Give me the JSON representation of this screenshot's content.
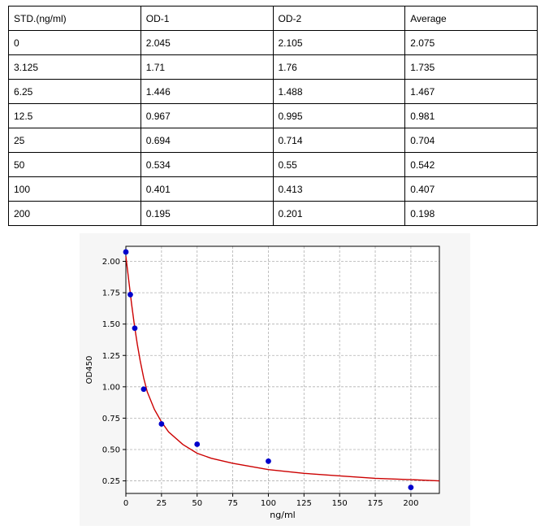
{
  "table": {
    "headers": [
      "STD.(ng/ml)",
      "OD-1",
      "OD-2",
      "Average"
    ],
    "rows": [
      [
        "0",
        "2.045",
        "2.105",
        "2.075"
      ],
      [
        "3.125",
        "1.71",
        "1.76",
        "1.735"
      ],
      [
        "6.25",
        "1.446",
        "1.488",
        "1.467"
      ],
      [
        "12.5",
        "0.967",
        "0.995",
        "0.981"
      ],
      [
        "25",
        "0.694",
        "0.714",
        "0.704"
      ],
      [
        "50",
        "0.534",
        "0.55",
        "0.542"
      ],
      [
        "100",
        "0.401",
        "0.413",
        "0.407"
      ],
      [
        "200",
        "0.195",
        "0.201",
        "0.198"
      ]
    ]
  },
  "chart_data": {
    "type": "scatter",
    "title": "",
    "xlabel": "ng/ml",
    "ylabel": "OD450",
    "xlim": [
      0,
      220
    ],
    "ylim": [
      0.15,
      2.12
    ],
    "xticks": [
      0,
      25,
      50,
      75,
      100,
      125,
      150,
      175,
      200
    ],
    "yticks": [
      0.25,
      0.5,
      0.75,
      1.0,
      1.25,
      1.5,
      1.75,
      2.0
    ],
    "grid": true,
    "points": {
      "x": [
        0,
        3.125,
        6.25,
        12.5,
        25,
        50,
        100,
        200
      ],
      "y": [
        2.075,
        1.735,
        1.467,
        0.981,
        0.704,
        0.542,
        0.407,
        0.198
      ],
      "color": "#0000cc"
    },
    "fit_curve": {
      "color": "#cc0000",
      "x": [
        0,
        2,
        4,
        6,
        8,
        10,
        12.5,
        15,
        20,
        25,
        30,
        40,
        50,
        60,
        75,
        100,
        125,
        150,
        175,
        200,
        220
      ],
      "y": [
        2.04,
        1.85,
        1.66,
        1.49,
        1.34,
        1.21,
        1.07,
        0.96,
        0.82,
        0.72,
        0.64,
        0.54,
        0.47,
        0.43,
        0.39,
        0.34,
        0.31,
        0.29,
        0.27,
        0.26,
        0.25
      ]
    }
  }
}
